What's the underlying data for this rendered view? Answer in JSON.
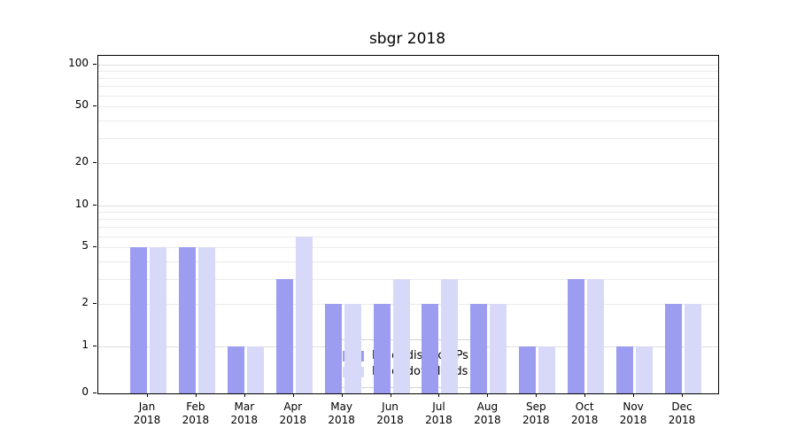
{
  "chart_data": {
    "type": "bar",
    "title": "sbgr 2018",
    "categories": [
      "Jan",
      "Feb",
      "Mar",
      "Apr",
      "May",
      "Jun",
      "Jul",
      "Aug",
      "Sep",
      "Oct",
      "Nov",
      "Dec"
    ],
    "year": "2018",
    "series": [
      {
        "name": "Nb of distinct IPs",
        "color": "#9c9cf0",
        "values": [
          5,
          5,
          1,
          3,
          2,
          2,
          2,
          2,
          1,
          3,
          1,
          2
        ]
      },
      {
        "name": "Nb of downloads",
        "color": "#d8d8f8",
        "values": [
          5,
          5,
          1,
          6,
          2,
          3,
          3,
          2,
          1,
          3,
          1,
          2
        ]
      }
    ],
    "yticks": [
      0,
      1,
      2,
      5,
      10,
      20,
      50,
      100
    ],
    "yscale": "symlog",
    "ylim": [
      0,
      120
    ],
    "grid": true,
    "legend_position": "lower center"
  }
}
